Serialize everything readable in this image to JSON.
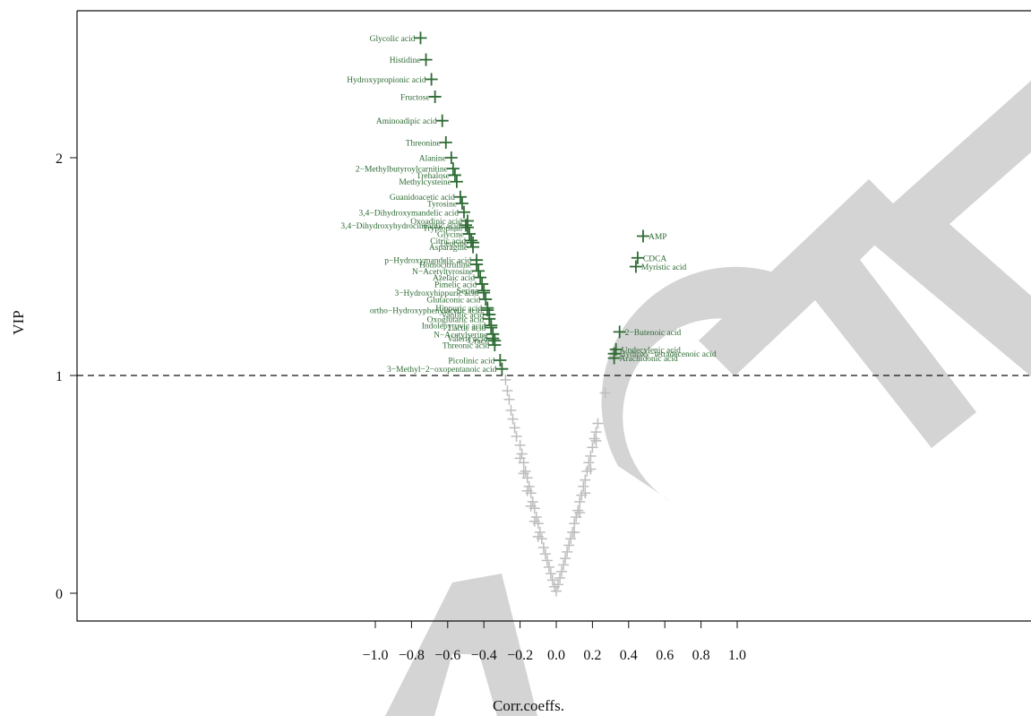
{
  "chart_data": {
    "type": "scatter",
    "title": "",
    "xlabel": "Corr.coeffs.",
    "ylabel": "VIP",
    "xlim": [
      -1.32,
      1.3
    ],
    "ylim": [
      -0.13,
      2.68
    ],
    "xticks": [
      -1.0,
      -0.8,
      -0.6,
      -0.4,
      -0.2,
      0.0,
      0.2,
      0.4,
      0.6,
      0.8,
      1.0
    ],
    "xtick_labels": [
      "−1.0",
      "−0.8",
      "−0.6",
      "−0.4",
      "−0.2",
      "0.0",
      "0.2",
      "0.4",
      "0.6",
      "0.8",
      "1.0"
    ],
    "yticks": [
      0,
      1,
      2
    ],
    "ytick_labels": [
      "0",
      "1",
      "2"
    ],
    "threshold": {
      "y": 1,
      "style": "dashed"
    },
    "marker": "+",
    "colors": {
      "significant": "#2e6b34",
      "nonsignificant": "#bdbdbd",
      "watermark": "#d4d4d4"
    },
    "grid": false,
    "significant_points": [
      {
        "label": "Glycolic acid",
        "x": -0.75,
        "y": 2.55
      },
      {
        "label": "Histidine",
        "x": -0.72,
        "y": 2.45
      },
      {
        "label": "Hydroxypropionic acid",
        "x": -0.69,
        "y": 2.36
      },
      {
        "label": "Fructose",
        "x": -0.67,
        "y": 2.28
      },
      {
        "label": "Aminoadipic acid",
        "x": -0.63,
        "y": 2.17
      },
      {
        "label": "Threonine",
        "x": -0.61,
        "y": 2.07
      },
      {
        "label": "Alanine",
        "x": -0.58,
        "y": 2.0
      },
      {
        "label": "2−Methylbutyroylcarnitine",
        "x": -0.57,
        "y": 1.95
      },
      {
        "label": "Trehalose",
        "x": -0.56,
        "y": 1.92
      },
      {
        "label": "Methylcysteine",
        "x": -0.55,
        "y": 1.89
      },
      {
        "label": "Guanidoacetic acid",
        "x": -0.53,
        "y": 1.82
      },
      {
        "label": "Tyrosine",
        "x": -0.52,
        "y": 1.79
      },
      {
        "label": "3,4−Dihydroxymandelic acid",
        "x": -0.51,
        "y": 1.75
      },
      {
        "label": "3,4−Dihydroxyhydrocinnamic acid",
        "x": -0.5,
        "y": 1.69
      },
      {
        "label": "Oxoadipic acid",
        "x": -0.49,
        "y": 1.71
      },
      {
        "label": "Tryptophan",
        "x": -0.49,
        "y": 1.68
      },
      {
        "label": "Glycine",
        "x": -0.48,
        "y": 1.65
      },
      {
        "label": "Citric acid",
        "x": -0.47,
        "y": 1.62
      },
      {
        "label": "Leucine",
        "x": -0.46,
        "y": 1.61
      },
      {
        "label": "Asparagine",
        "x": -0.46,
        "y": 1.59
      },
      {
        "label": "p−Hydroxymandelic acid",
        "x": -0.44,
        "y": 1.53
      },
      {
        "label": "Homocitrulline",
        "x": -0.44,
        "y": 1.51
      },
      {
        "label": "N−Acetyltyrosine",
        "x": -0.43,
        "y": 1.48
      },
      {
        "label": "Azelaic acid",
        "x": -0.42,
        "y": 1.45
      },
      {
        "label": "Pimelic acid",
        "x": -0.41,
        "y": 1.42
      },
      {
        "label": "Serine",
        "x": -0.4,
        "y": 1.39
      },
      {
        "label": "3−Hydroxyhippuric acid",
        "x": -0.4,
        "y": 1.38
      },
      {
        "label": "Glutaconic acid",
        "x": -0.39,
        "y": 1.35
      },
      {
        "label": "ortho−Hydroxyphenylacetic acid",
        "x": -0.38,
        "y": 1.3
      },
      {
        "label": "Hippuric acid",
        "x": -0.38,
        "y": 1.31
      },
      {
        "label": "Vanillic acid",
        "x": -0.37,
        "y": 1.28
      },
      {
        "label": "Oxoglutaric acid",
        "x": -0.37,
        "y": 1.26
      },
      {
        "label": "Indolepyruvic acid",
        "x": -0.36,
        "y": 1.23
      },
      {
        "label": "Lactic acid",
        "x": -0.36,
        "y": 1.22
      },
      {
        "label": "N−Acetylserine",
        "x": -0.35,
        "y": 1.19
      },
      {
        "label": "Valeric acid",
        "x": -0.35,
        "y": 1.17
      },
      {
        "label": "Uracil",
        "x": -0.34,
        "y": 1.16
      },
      {
        "label": "Threonic acid",
        "x": -0.34,
        "y": 1.14
      },
      {
        "label": "Picolinic acid",
        "x": -0.31,
        "y": 1.07
      },
      {
        "label": "3−Methyl−2−oxopentanoic acid",
        "x": -0.3,
        "y": 1.03
      },
      {
        "label": "AMP",
        "x": 0.48,
        "y": 1.64
      },
      {
        "label": "CDCA",
        "x": 0.45,
        "y": 1.54
      },
      {
        "label": "Myristic acid",
        "x": 0.44,
        "y": 1.5
      },
      {
        "label": "2−Butenoic acid",
        "x": 0.35,
        "y": 1.2
      },
      {
        "label": "Undecylenic acid",
        "x": 0.33,
        "y": 1.12
      },
      {
        "label": "Hydroxy−tetradecenoic acid",
        "x": 0.32,
        "y": 1.1
      },
      {
        "label": "Arachidonic acid",
        "x": 0.32,
        "y": 1.08
      }
    ],
    "nonsignificant_points": [
      {
        "x": -0.28,
        "y": 0.98
      },
      {
        "x": -0.27,
        "y": 0.93
      },
      {
        "x": -0.26,
        "y": 0.89
      },
      {
        "x": -0.25,
        "y": 0.84
      },
      {
        "x": -0.24,
        "y": 0.8
      },
      {
        "x": -0.23,
        "y": 0.76
      },
      {
        "x": -0.22,
        "y": 0.72
      },
      {
        "x": -0.2,
        "y": 0.68
      },
      {
        "x": -0.19,
        "y": 0.64
      },
      {
        "x": -0.18,
        "y": 0.6
      },
      {
        "x": -0.17,
        "y": 0.56
      },
      {
        "x": -0.16,
        "y": 0.53
      },
      {
        "x": -0.15,
        "y": 0.49
      },
      {
        "x": -0.14,
        "y": 0.46
      },
      {
        "x": -0.13,
        "y": 0.42
      },
      {
        "x": -0.12,
        "y": 0.39
      },
      {
        "x": -0.11,
        "y": 0.35
      },
      {
        "x": -0.1,
        "y": 0.32
      },
      {
        "x": -0.09,
        "y": 0.28
      },
      {
        "x": -0.08,
        "y": 0.25
      },
      {
        "x": -0.07,
        "y": 0.21
      },
      {
        "x": -0.06,
        "y": 0.18
      },
      {
        "x": -0.05,
        "y": 0.15
      },
      {
        "x": -0.04,
        "y": 0.12
      },
      {
        "x": -0.03,
        "y": 0.09
      },
      {
        "x": -0.02,
        "y": 0.06
      },
      {
        "x": -0.01,
        "y": 0.03
      },
      {
        "x": 0.0,
        "y": 0.01
      },
      {
        "x": 0.01,
        "y": 0.04
      },
      {
        "x": 0.02,
        "y": 0.07
      },
      {
        "x": 0.03,
        "y": 0.1
      },
      {
        "x": 0.04,
        "y": 0.13
      },
      {
        "x": 0.05,
        "y": 0.16
      },
      {
        "x": 0.06,
        "y": 0.19
      },
      {
        "x": 0.07,
        "y": 0.22
      },
      {
        "x": 0.08,
        "y": 0.25
      },
      {
        "x": 0.09,
        "y": 0.28
      },
      {
        "x": 0.1,
        "y": 0.32
      },
      {
        "x": 0.11,
        "y": 0.35
      },
      {
        "x": 0.12,
        "y": 0.38
      },
      {
        "x": 0.13,
        "y": 0.42
      },
      {
        "x": 0.14,
        "y": 0.45
      },
      {
        "x": 0.15,
        "y": 0.49
      },
      {
        "x": 0.16,
        "y": 0.52
      },
      {
        "x": 0.17,
        "y": 0.56
      },
      {
        "x": 0.18,
        "y": 0.6
      },
      {
        "x": 0.19,
        "y": 0.63
      },
      {
        "x": 0.2,
        "y": 0.67
      },
      {
        "x": 0.21,
        "y": 0.71
      },
      {
        "x": 0.22,
        "y": 0.74
      },
      {
        "x": 0.23,
        "y": 0.78
      },
      {
        "x": 0.27,
        "y": 0.92
      },
      {
        "x": -0.2,
        "y": 0.62
      },
      {
        "x": -0.18,
        "y": 0.55
      },
      {
        "x": -0.16,
        "y": 0.47
      },
      {
        "x": -0.14,
        "y": 0.4
      },
      {
        "x": -0.12,
        "y": 0.33
      },
      {
        "x": -0.1,
        "y": 0.26
      },
      {
        "x": 0.1,
        "y": 0.28
      },
      {
        "x": 0.13,
        "y": 0.37
      },
      {
        "x": 0.16,
        "y": 0.46
      },
      {
        "x": 0.19,
        "y": 0.57
      },
      {
        "x": 0.22,
        "y": 0.7
      }
    ]
  },
  "watermark_text": "RETRACTED"
}
